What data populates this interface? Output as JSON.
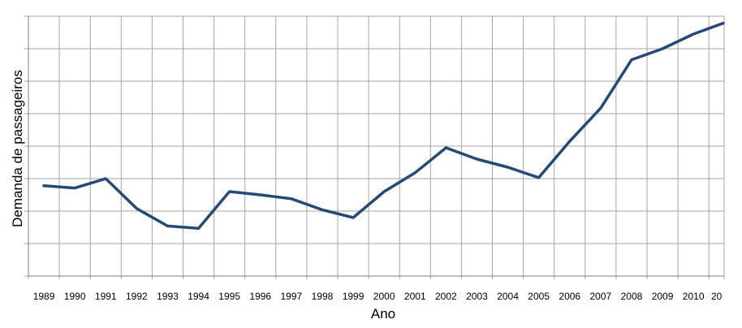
{
  "chart_data": {
    "type": "line",
    "title": "",
    "xlabel": "Ano",
    "ylabel": "Demanda de passageiros",
    "x": [
      "1989",
      "1990",
      "1991",
      "1992",
      "1993",
      "1994",
      "1995",
      "1996",
      "1997",
      "1998",
      "1999",
      "2000",
      "2001",
      "2002",
      "2003",
      "2004",
      "2005",
      "2006",
      "2007",
      "2008",
      "2009",
      "2010",
      "20"
    ],
    "series": [
      {
        "values": [
          1.78,
          1.71,
          2.0,
          1.08,
          0.54,
          0.47,
          1.6,
          1.5,
          1.38,
          1.04,
          0.8,
          1.6,
          2.18,
          2.95,
          2.6,
          2.35,
          2.03,
          3.15,
          4.17,
          5.66,
          6.0,
          6.45,
          6.8
        ]
      }
    ],
    "ylim": [
      -1,
      7
    ],
    "grid": true,
    "legend": "none",
    "colors": {
      "line": "#264978",
      "grid": "#a6a6a6"
    }
  }
}
